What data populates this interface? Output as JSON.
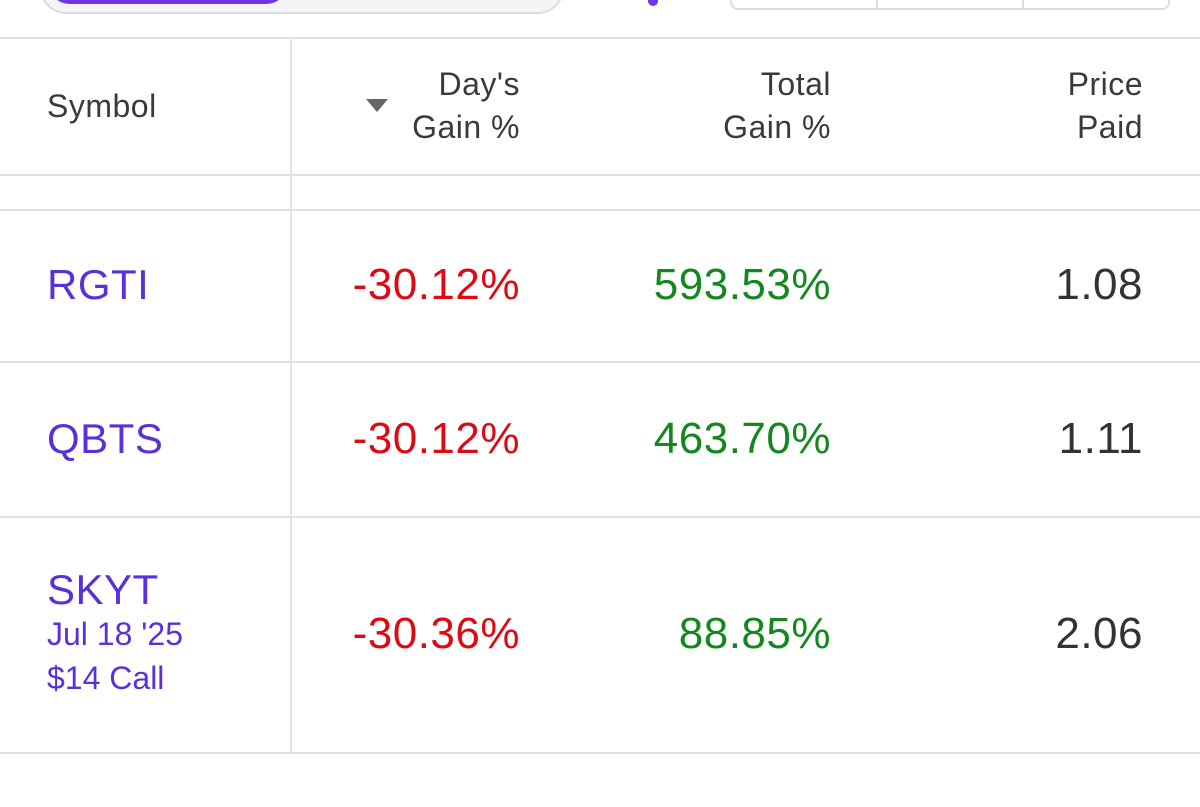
{
  "table": {
    "header": [
      [
        "Symbol"
      ],
      [
        "Day's",
        "Gain %"
      ],
      [
        "Total",
        "Gain %"
      ],
      [
        "Price",
        "Paid"
      ]
    ],
    "rows": [
      {
        "symbol": "RGTI",
        "day_gain": "-30.12%",
        "total_gain": "593.53%",
        "price_paid": "1.08"
      },
      {
        "symbol": "QBTS",
        "day_gain": "-30.12%",
        "total_gain": "463.70%",
        "price_paid": "1.11"
      },
      {
        "symbol": "SKYT",
        "details": [
          "Jul 18 '25",
          "$14 Call"
        ],
        "day_gain": "-30.36%",
        "total_gain": "88.85%",
        "price_paid": "2.06"
      }
    ]
  }
}
